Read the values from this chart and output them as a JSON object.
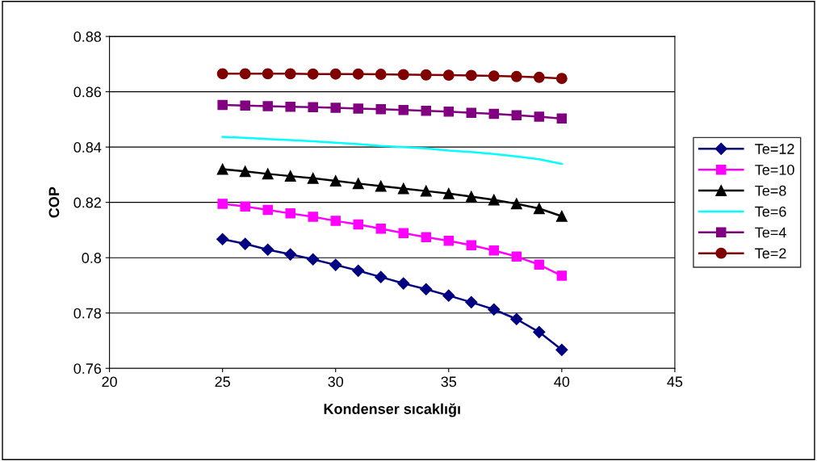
{
  "chart_data": {
    "type": "line",
    "xlabel": "Kondenser sıcaklığı",
    "ylabel": "COP",
    "x": [
      25,
      26,
      27,
      28,
      29,
      30,
      31,
      32,
      33,
      34,
      35,
      36,
      37,
      38,
      39,
      40
    ],
    "xlim": [
      20,
      45
    ],
    "xticks": [
      20,
      25,
      30,
      35,
      40,
      45
    ],
    "ylim": [
      0.76,
      0.88
    ],
    "yticks": [
      0.76,
      0.78,
      {
        "value": 0.8,
        "label": "0.8"
      },
      0.82,
      0.84,
      0.86,
      0.88
    ],
    "grid": "y",
    "legend": "right",
    "line_style": "solid",
    "series": [
      {
        "name": "Te=12",
        "color": "#000080",
        "marker": "diamond",
        "values": [
          0.8067,
          0.805,
          0.8029,
          0.8012,
          0.7994,
          0.7974,
          0.7953,
          0.793,
          0.7907,
          0.7886,
          0.7863,
          0.7839,
          0.7813,
          0.7778,
          0.7731,
          0.7667
        ]
      },
      {
        "name": "Te=10",
        "color": "#ff00ff",
        "marker": "square",
        "values": [
          0.8195,
          0.8185,
          0.8173,
          0.816,
          0.8148,
          0.8133,
          0.812,
          0.8105,
          0.8089,
          0.8074,
          0.8061,
          0.8045,
          0.8026,
          0.8004,
          0.7975,
          0.7935
        ]
      },
      {
        "name": "Te=8",
        "color": "#000000",
        "marker": "triangle",
        "values": [
          0.832,
          0.8312,
          0.8303,
          0.8295,
          0.8287,
          0.8278,
          0.8268,
          0.8259,
          0.825,
          0.8241,
          0.8232,
          0.8221,
          0.8209,
          0.8195,
          0.8178,
          0.815
        ]
      },
      {
        "name": "Te=6",
        "color": "#00ffff",
        "marker": "none",
        "values": [
          0.8437,
          0.8433,
          0.8429,
          0.8425,
          0.8421,
          0.8416,
          0.8411,
          0.8404,
          0.84,
          0.8395,
          0.8387,
          0.8382,
          0.8375,
          0.8366,
          0.8356,
          0.8339
        ]
      },
      {
        "name": "Te=4",
        "color": "#800080",
        "marker": "square",
        "values": [
          0.8552,
          0.855,
          0.8548,
          0.8546,
          0.8544,
          0.8542,
          0.8539,
          0.8537,
          0.8534,
          0.8531,
          0.8528,
          0.8524,
          0.852,
          0.8515,
          0.851,
          0.8503
        ]
      },
      {
        "name": "Te=2",
        "color": "#800000",
        "marker": "circle",
        "values": [
          0.8665,
          0.8665,
          0.8665,
          0.8665,
          0.8664,
          0.8664,
          0.8664,
          0.8663,
          0.8662,
          0.8661,
          0.866,
          0.8659,
          0.8657,
          0.8655,
          0.8652,
          0.8648
        ]
      }
    ]
  }
}
